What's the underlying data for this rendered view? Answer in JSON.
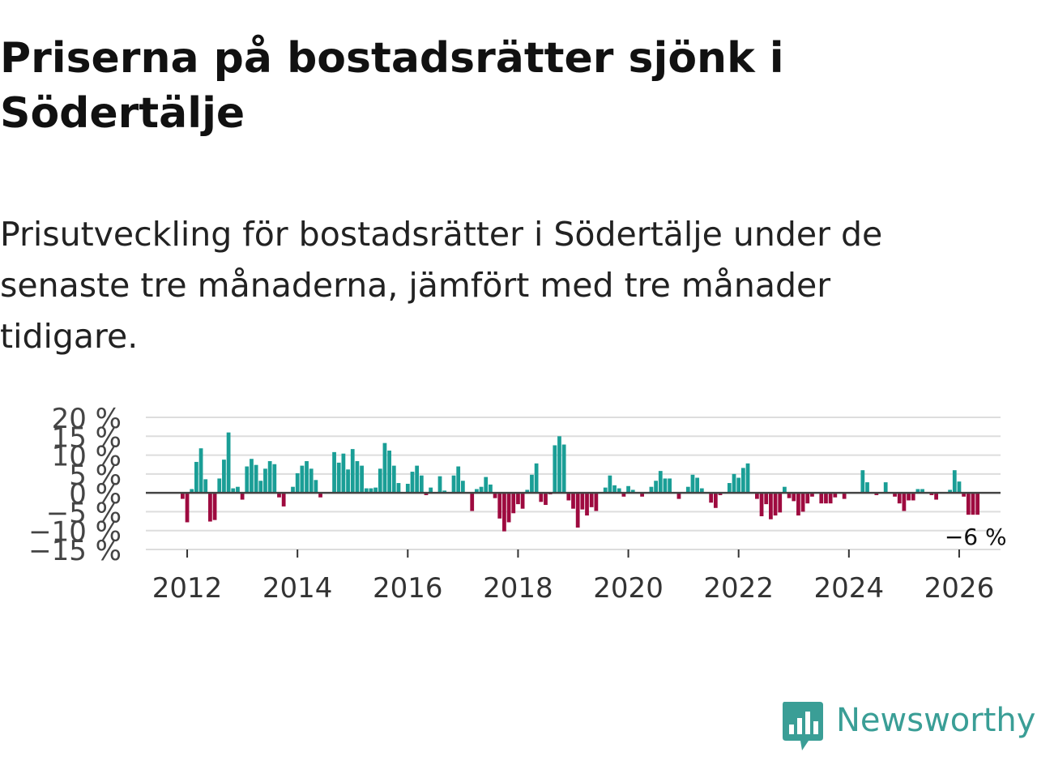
{
  "header": {
    "title": "Priserna på bostadsrätter sjönk i Södertälje",
    "subtitle": "Prisutveckling för bostadsrätter i Södertälje under de senaste tre månaderna, jämfört med tre månader tidigare."
  },
  "colors": {
    "positive": "#1a9e96",
    "negative": "#9e0a3f",
    "grid": "#dddddd",
    "zero_line": "#444444",
    "brand": "#3a9e96"
  },
  "logo": {
    "name": "Newsworthy",
    "icon": "bar-chart-speech-icon"
  },
  "chart_data": {
    "type": "bar",
    "title": "Priserna på bostadsrätter sjönk i Södertälje",
    "subtitle": "Prisutveckling för bostadsrätter i Södertälje under de senaste tre månaderna, jämfört med tre månader tidigare.",
    "xlabel": "",
    "ylabel": "",
    "start": "2011-12",
    "frequency": "monthly",
    "xlim": [
      2011.25,
      2026.75
    ],
    "ylim": [
      -15,
      20
    ],
    "yticks": [
      20,
      15,
      10,
      5,
      0,
      -5,
      -10,
      -15
    ],
    "ytick_labels": [
      "20 %",
      "15 %",
      "10 %",
      "5 %",
      "0 %",
      "−5 %",
      "−10 %",
      "−15 %"
    ],
    "xticks": [
      2012,
      2014,
      2016,
      2018,
      2020,
      2022,
      2024,
      2026
    ],
    "xtick_labels": [
      "2012",
      "2014",
      "2016",
      "2018",
      "2020",
      "2022",
      "2024",
      "2026"
    ],
    "annotation": "−6 %",
    "values": [
      -1.6,
      -7.8,
      1.0,
      8.2,
      11.8,
      3.6,
      -7.6,
      -7.2,
      3.8,
      8.8,
      16.0,
      1.2,
      1.6,
      -1.8,
      7.0,
      9.0,
      7.4,
      3.2,
      6.4,
      8.4,
      7.6,
      -1.2,
      -3.6,
      0.0,
      1.6,
      5.2,
      7.2,
      8.4,
      6.4,
      3.4,
      -1.2,
      0.0,
      0.0,
      10.8,
      8.0,
      10.4,
      6.2,
      11.6,
      8.4,
      7.2,
      1.2,
      1.2,
      1.4,
      6.4,
      13.2,
      11.2,
      7.2,
      2.6,
      0.0,
      2.4,
      5.6,
      7.2,
      4.6,
      -0.6,
      1.4,
      0.0,
      4.4,
      0.6,
      0.0,
      4.6,
      7.0,
      3.2,
      0.0,
      -4.8,
      1.0,
      1.6,
      4.2,
      2.2,
      -1.4,
      -6.8,
      -10.2,
      -7.8,
      -5.4,
      -3.0,
      -4.2,
      0.8,
      4.8,
      7.8,
      -2.4,
      -3.2,
      -0.4,
      12.6,
      15.0,
      12.8,
      -2.0,
      -4.2,
      -9.2,
      -4.4,
      -6.0,
      -3.8,
      -4.8,
      0.0,
      1.4,
      4.6,
      2.0,
      1.2,
      -1.0,
      1.8,
      0.8,
      0.0,
      -1.0,
      0.0,
      1.6,
      3.2,
      5.8,
      3.8,
      3.8,
      0.0,
      -1.6,
      0.0,
      1.6,
      4.8,
      4.0,
      1.2,
      0.0,
      -2.6,
      -4.0,
      -0.6,
      0.0,
      2.6,
      5.0,
      4.0,
      6.6,
      7.8,
      0.0,
      -1.6,
      -6.2,
      -3.0,
      -7.0,
      -6.0,
      -5.2,
      1.6,
      -1.4,
      -2.2,
      -6.0,
      -5.0,
      -2.8,
      -1.0,
      0.0,
      -2.8,
      -2.8,
      -2.8,
      -1.2,
      0.0,
      -1.6,
      0.0,
      0.0,
      0.0,
      6.0,
      2.8,
      0.0,
      -0.6,
      0.0,
      2.8,
      0.0,
      -1.0,
      -2.8,
      -4.8,
      -2.0,
      -2.0,
      1.0,
      1.0,
      0.0,
      -0.6,
      -1.8,
      0.0,
      0.0,
      0.8,
      6.0,
      3.0,
      -1.0,
      -5.8,
      -5.8,
      -5.8
    ]
  }
}
